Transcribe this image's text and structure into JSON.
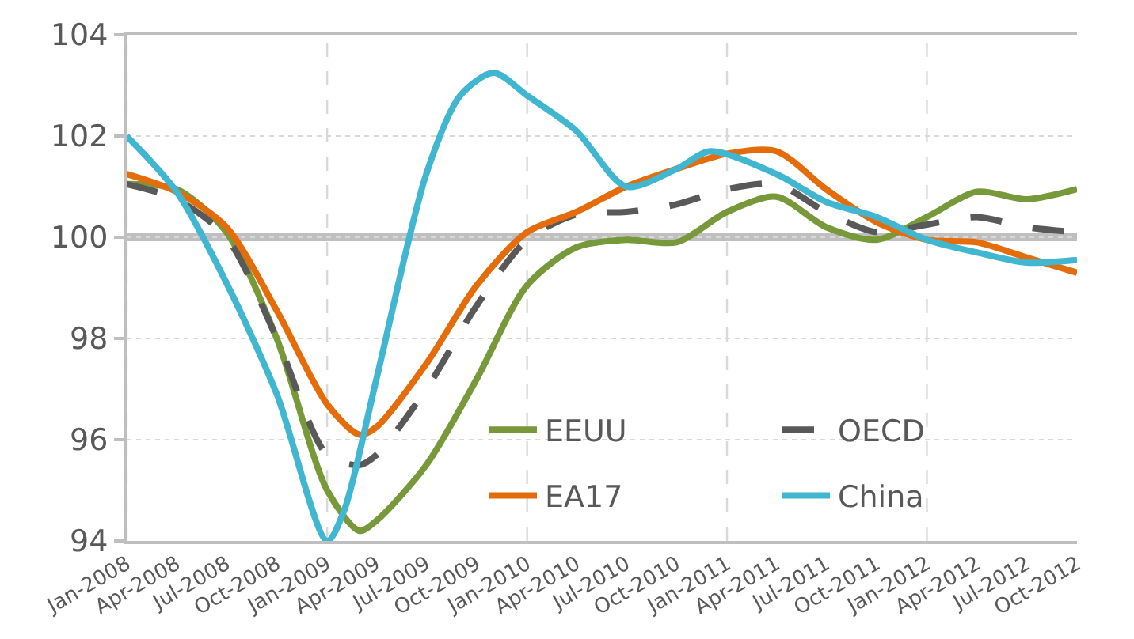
{
  "chart_data": {
    "type": "line",
    "x": [
      "2008-01",
      "2008-04",
      "2008-07",
      "2008-10",
      "2009-01",
      "2009-03",
      "2009-04",
      "2009-07",
      "2009-10",
      "2010-01",
      "2010-04",
      "2010-07",
      "2010-10",
      "2011-01",
      "2011-04",
      "2011-07",
      "2011-10",
      "2012-01",
      "2012-04",
      "2012-07",
      "2012-10"
    ],
    "series": [
      {
        "name": "EEUU",
        "color": "#77993a",
        "values": [
          101.05,
          100.95,
          100.1,
          98.0,
          95.0,
          94.2,
          94.4,
          95.5,
          97.2,
          99.05,
          99.8,
          99.95,
          99.9,
          100.5,
          100.8,
          100.2,
          99.95,
          100.4,
          100.9,
          100.75,
          100.95
        ]
      },
      {
        "name": "OECD",
        "color": "#595959",
        "line_style": "dashed",
        "values": [
          101.05,
          100.75,
          100.0,
          98.0,
          95.7,
          95.5,
          95.7,
          97.0,
          98.65,
          99.95,
          100.45,
          100.5,
          100.65,
          100.95,
          101.05,
          100.5,
          100.1,
          100.25,
          100.4,
          100.2,
          100.1
        ]
      },
      {
        "name": "EA17",
        "color": "#e46c0a",
        "values": [
          101.25,
          100.9,
          100.2,
          98.55,
          96.7,
          96.1,
          96.25,
          97.5,
          99.05,
          100.1,
          100.5,
          101.0,
          101.35,
          101.65,
          101.7,
          100.95,
          100.3,
          99.95,
          99.9,
          99.6,
          99.3
        ]
      },
      {
        "name": "China",
        "x": [
          "2008-01",
          "2008-04",
          "2008-07",
          "2008-10",
          "2009-01",
          "2009-02",
          "2009-04",
          "2009-07",
          "2009-09",
          "2009-11",
          "2010-01",
          "2010-04",
          "2010-07",
          "2010-10",
          "2010-12",
          "2011-04",
          "2011-07",
          "2011-10",
          "2012-01",
          "2012-04",
          "2012-07",
          "2012-10"
        ],
        "color": "#41b6d0",
        "values": [
          102.0,
          100.9,
          99.1,
          96.9,
          94.0,
          94.6,
          97.2,
          101.25,
          102.8,
          103.25,
          102.8,
          102.1,
          101.0,
          101.35,
          101.7,
          101.25,
          100.7,
          100.4,
          99.95,
          99.7,
          99.5,
          99.55
        ]
      }
    ],
    "xlim": [
      "2008-01",
      "2012-10"
    ],
    "xticks": [
      {
        "value": "2008-01",
        "label": "Jan-2008"
      },
      {
        "value": "2008-04",
        "label": "Apr-2008"
      },
      {
        "value": "2008-07",
        "label": "Jul-2008"
      },
      {
        "value": "2008-10",
        "label": "Oct-2008"
      },
      {
        "value": "2009-01",
        "label": "Jan-2009"
      },
      {
        "value": "2009-04",
        "label": "Apr-2009"
      },
      {
        "value": "2009-07",
        "label": "Jul-2009"
      },
      {
        "value": "2009-10",
        "label": "Oct-2009"
      },
      {
        "value": "2010-01",
        "label": "Jan-2010"
      },
      {
        "value": "2010-04",
        "label": "Apr-2010"
      },
      {
        "value": "2010-07",
        "label": "Jul-2010"
      },
      {
        "value": "2010-10",
        "label": "Oct-2010"
      },
      {
        "value": "2011-01",
        "label": "Jan-2011"
      },
      {
        "value": "2011-04",
        "label": "Apr-2011"
      },
      {
        "value": "2011-07",
        "label": "Jul-2011"
      },
      {
        "value": "2011-10",
        "label": "Oct-2011"
      },
      {
        "value": "2012-01",
        "label": "Jan-2012"
      },
      {
        "value": "2012-04",
        "label": "Apr-2012"
      },
      {
        "value": "2012-07",
        "label": "Jul-2012"
      },
      {
        "value": "2012-10",
        "label": "Oct-2012"
      }
    ],
    "ylim": [
      94,
      104
    ],
    "yticks": [
      94,
      96,
      98,
      100,
      102,
      104
    ],
    "grid": true,
    "legend": "bottom right",
    "marker": "none",
    "line_style": "solid",
    "ref_lines": [
      {
        "axis": "y",
        "value": 100,
        "color": "#bfbfbf"
      }
    ]
  }
}
